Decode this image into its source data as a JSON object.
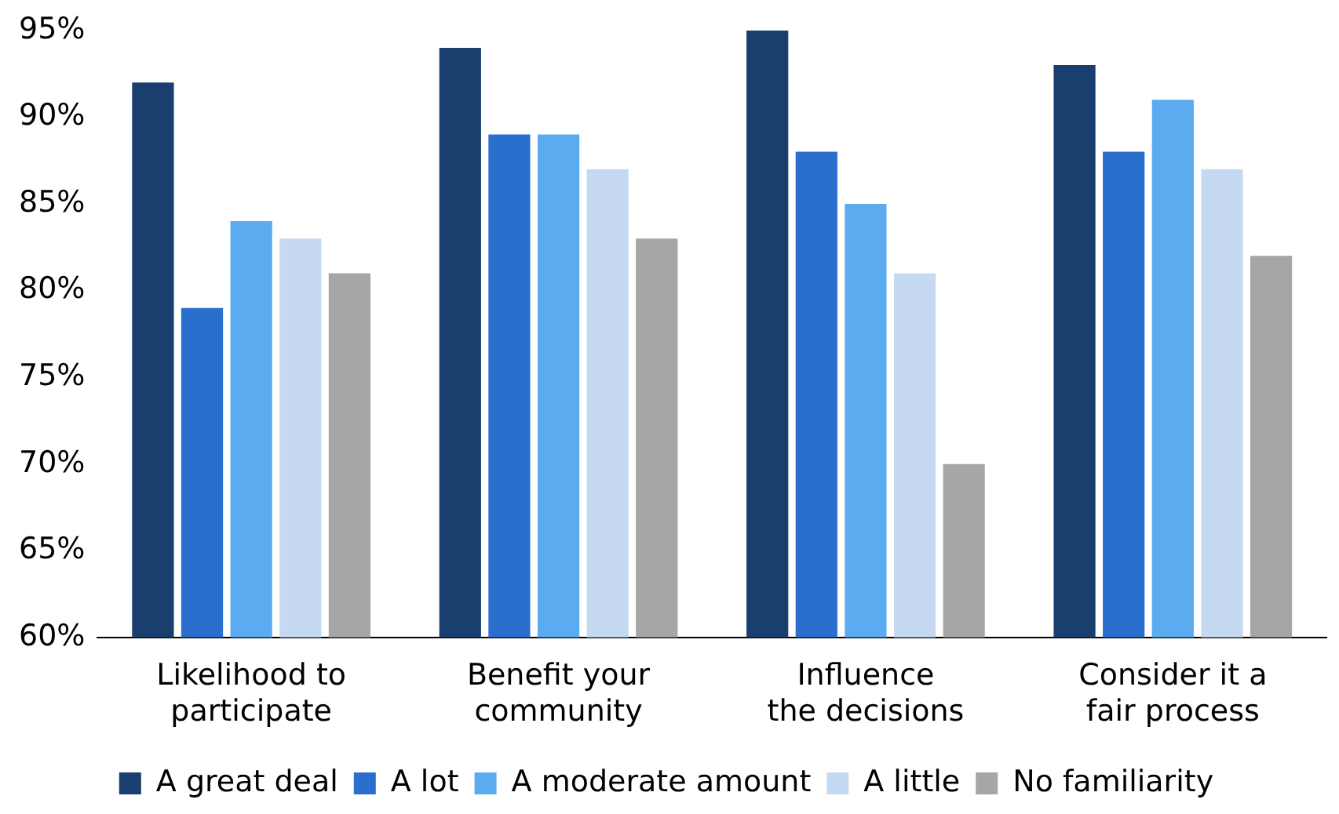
{
  "chart_data": {
    "type": "bar",
    "categories": [
      "Likelihood to participate",
      "Benefit your community",
      "Influence the decisions",
      "Consider it a fair process"
    ],
    "series": [
      {
        "name": "A great deal",
        "color": "#1a3f6e",
        "values": [
          92,
          94,
          95,
          93
        ]
      },
      {
        "name": "A lot",
        "color": "#2b6fce",
        "values": [
          79,
          89,
          88,
          88
        ]
      },
      {
        "name": "A moderate amount",
        "color": "#5aabf0",
        "values": [
          84,
          89,
          85,
          91
        ]
      },
      {
        "name": "A little",
        "color": "#c5daf2",
        "values": [
          83,
          87,
          81,
          87
        ]
      },
      {
        "name": "No familiarity",
        "color": "#a6a6a6",
        "values": [
          81,
          83,
          70,
          82
        ]
      }
    ],
    "ylim": [
      60,
      95
    ],
    "yticks": [
      {
        "value": 60,
        "label": "60%"
      },
      {
        "value": 65,
        "label": "65%"
      },
      {
        "value": 70,
        "label": "70%"
      },
      {
        "value": 75,
        "label": "75%"
      },
      {
        "value": 80,
        "label": "80%"
      },
      {
        "value": 85,
        "label": "85%"
      },
      {
        "value": 90,
        "label": "90%"
      },
      {
        "value": 95,
        "label": "95%"
      }
    ],
    "grid": false,
    "legend": "bottom"
  }
}
